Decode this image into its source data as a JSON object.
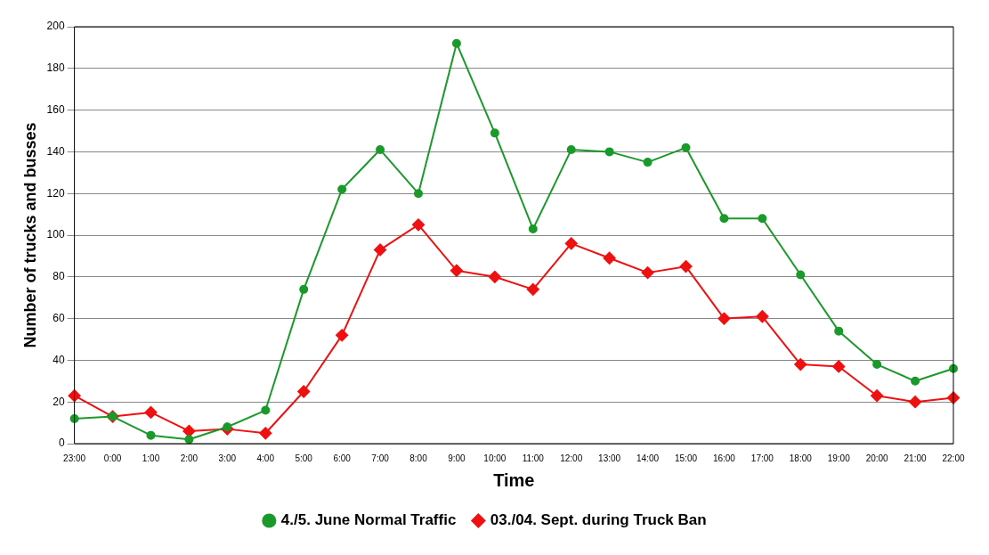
{
  "chart_data": {
    "type": "line",
    "xlabel": "Time",
    "ylabel": "Number of trucks and busses",
    "categories": [
      "23:00",
      "0:00",
      "1:00",
      "2:00",
      "3:00",
      "4:00",
      "5:00",
      "6:00",
      "7:00",
      "8:00",
      "9:00",
      "10:00",
      "11:00",
      "12:00",
      "13:00",
      "14:00",
      "15:00",
      "16:00",
      "17:00",
      "18:00",
      "19:00",
      "20:00",
      "21:00",
      "22:00"
    ],
    "series": [
      {
        "name": "4./5. June Normal Traffic",
        "color": "#1a9a2a",
        "values": [
          12,
          13,
          4,
          2,
          8,
          16,
          74,
          122,
          141,
          120,
          192,
          149,
          103,
          141,
          140,
          135,
          142,
          108,
          108,
          81,
          54,
          38,
          30,
          36
        ]
      },
      {
        "name": "03./04. Sept. during Truck Ban",
        "color": "#f01010",
        "marker": "diamond",
        "values": [
          23,
          13,
          15,
          6,
          7,
          5,
          25,
          52,
          93,
          105,
          83,
          80,
          74,
          96,
          89,
          82,
          85,
          60,
          61,
          38,
          37,
          23,
          20,
          22
        ]
      }
    ],
    "ylim": [
      0,
      200
    ],
    "yticks": [
      0,
      20,
      40,
      60,
      80,
      100,
      120,
      140,
      160,
      180,
      200
    ],
    "grid": "y",
    "legend": "bottom",
    "marker": "circle",
    "line_style": "solid"
  }
}
